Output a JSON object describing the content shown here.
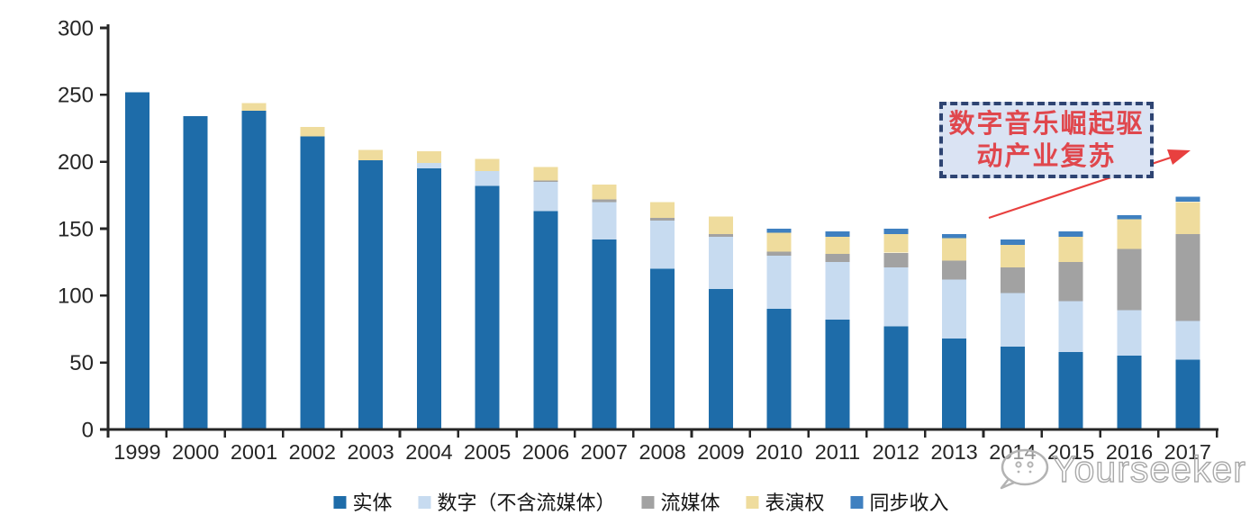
{
  "chart_data": {
    "type": "bar",
    "stacked": true,
    "title": "",
    "xlabel": "",
    "ylabel": "",
    "ylim": [
      0,
      300
    ],
    "y_ticks": [
      0,
      50,
      100,
      150,
      200,
      250,
      300
    ],
    "grid": false,
    "legend_position": "bottom",
    "categories": [
      "1999",
      "2000",
      "2001",
      "2002",
      "2003",
      "2004",
      "2005",
      "2006",
      "2007",
      "2008",
      "2009",
      "2010",
      "2011",
      "2012",
      "2013",
      "2014",
      "2015",
      "2016",
      "2017"
    ],
    "series": [
      {
        "name": "实体",
        "color": "#1e6ca9",
        "values": [
          252,
          234,
          238,
          219,
          201,
          195,
          182,
          163,
          142,
          120,
          105,
          90,
          82,
          77,
          68,
          62,
          58,
          55,
          52
        ]
      },
      {
        "name": "数字（不含流媒体）",
        "color": "#c7dbf0",
        "values": [
          0,
          0,
          0,
          0,
          0,
          4,
          11,
          22,
          28,
          36,
          39,
          40,
          43,
          44,
          44,
          40,
          38,
          34,
          29
        ]
      },
      {
        "name": "流媒体",
        "color": "#a2a2a2",
        "values": [
          0,
          0,
          0,
          0,
          0,
          0,
          0,
          1,
          2,
          2,
          2,
          3,
          6,
          11,
          14,
          19,
          29,
          46,
          65
        ]
      },
      {
        "name": "表演权",
        "color": "#efdc9d",
        "values": [
          0,
          0,
          6,
          7,
          8,
          9,
          9,
          10,
          11,
          12,
          13,
          14,
          13,
          14,
          17,
          17,
          19,
          22,
          24
        ]
      },
      {
        "name": "同步收入",
        "color": "#3f80c0",
        "values": [
          0,
          0,
          0,
          0,
          0,
          0,
          0,
          0,
          0,
          0,
          0,
          3,
          4,
          4,
          3,
          4,
          4,
          3,
          4
        ]
      }
    ]
  },
  "annotation": {
    "full_text": "数字音乐崛起驱动产业复苏",
    "line1": "数字音乐崛起驱",
    "line2": "动产业复苏",
    "text_color": "#e0474d",
    "box_fill": "#dae3f3",
    "box_border": "#2e4472",
    "arrow_color": "#e8403f"
  },
  "watermark": {
    "text": "Yourseeker"
  },
  "axis": {
    "line_color": "#262626",
    "label_color": "#262626"
  }
}
